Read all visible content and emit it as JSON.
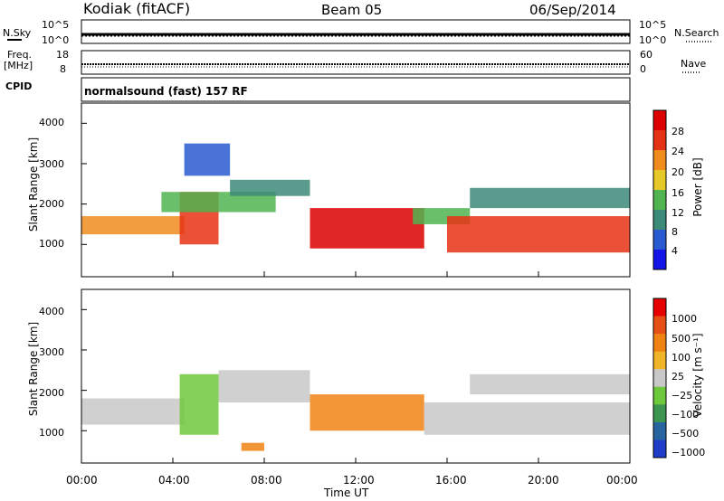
{
  "header": {
    "station": "Kodiak (fitACF)",
    "beam": "Beam 05",
    "date": "06/Sep/2014"
  },
  "strips": {
    "nsky_label": "N.Sky",
    "nsky_ticks": [
      "10^5",
      "10^0"
    ],
    "nsearch_label": "N.Search",
    "nsearch_ticks": [
      "10^5",
      "10^0"
    ],
    "freq_label": "Freq.",
    "freq_unit": "[MHz]",
    "freq_ticks": [
      "18",
      "8"
    ],
    "nave_label": "Nave",
    "nave_ticks": [
      "60",
      "0"
    ],
    "cpid_label": "CPID",
    "cpid_value": "normalsound (fast) 157 RF"
  },
  "chart_data": [
    {
      "type": "heatmap",
      "name": "power",
      "ylabel": "Slant Range [km]",
      "yticks": [
        "1000",
        "2000",
        "3000",
        "4000"
      ],
      "ylim": [
        200,
        4500
      ],
      "colorbar_label": "Power [dB]",
      "colorbar_ticks": [
        "4",
        "8",
        "12",
        "16",
        "20",
        "24",
        "28"
      ],
      "colorbar_colors": [
        "#1414e6",
        "#2a5ad0",
        "#3c8a78",
        "#50b450",
        "#e6c828",
        "#f08c1e",
        "#e63214",
        "#dc0000"
      ],
      "regions": [
        {
          "t0": 0.0,
          "t1": 4.5,
          "r0": 1250,
          "r1": 1700,
          "level": 5
        },
        {
          "t0": 4.3,
          "t1": 6.0,
          "r0": 1000,
          "r1": 2300,
          "level": 6
        },
        {
          "t0": 3.5,
          "t1": 8.5,
          "r0": 1800,
          "r1": 2300,
          "level": 3
        },
        {
          "t0": 6.5,
          "t1": 10.0,
          "r0": 2200,
          "r1": 2600,
          "level": 2
        },
        {
          "t0": 10.0,
          "t1": 15.0,
          "r0": 900,
          "r1": 1900,
          "level": 7
        },
        {
          "t0": 14.5,
          "t1": 17.0,
          "r0": 1500,
          "r1": 1900,
          "level": 3
        },
        {
          "t0": 16.0,
          "t1": 24.0,
          "r0": 800,
          "r1": 1700,
          "level": 6
        },
        {
          "t0": 17.0,
          "t1": 24.0,
          "r0": 1900,
          "r1": 2400,
          "level": 2
        },
        {
          "t0": 4.5,
          "t1": 6.5,
          "r0": 2700,
          "r1": 3500,
          "level": 1
        }
      ]
    },
    {
      "type": "heatmap",
      "name": "velocity",
      "ylabel": "Slant Range [km]",
      "yticks": [
        "1000",
        "2000",
        "3000",
        "4000"
      ],
      "ylim": [
        200,
        4500
      ],
      "colorbar_label": "Velocity [m s⁻¹]",
      "colorbar_ticks": [
        "1000",
        "500",
        "100",
        "25",
        "−25",
        "−100",
        "−500",
        "−1000"
      ],
      "colorbar_colors": [
        "#1e3cc8",
        "#2864a0",
        "#3c9650",
        "#6ec83c",
        "#c8c8c8",
        "#f0b428",
        "#f08214",
        "#e65014",
        "#e60000"
      ],
      "xticks": [
        "00:00",
        "04:00",
        "08:00",
        "12:00",
        "16:00",
        "20:00",
        "00:00"
      ],
      "xlim": [
        0,
        24
      ],
      "xlabel": "Time UT",
      "regions": [
        {
          "t0": 0.0,
          "t1": 4.5,
          "r0": 1150,
          "r1": 1800,
          "level": 4
        },
        {
          "t0": 4.3,
          "t1": 6.0,
          "r0": 900,
          "r1": 2400,
          "level": 3
        },
        {
          "t0": 6.0,
          "t1": 10.0,
          "r0": 1700,
          "r1": 2500,
          "level": 4
        },
        {
          "t0": 10.0,
          "t1": 15.0,
          "r0": 1000,
          "r1": 1900,
          "level": 6
        },
        {
          "t0": 15.0,
          "t1": 24.0,
          "r0": 900,
          "r1": 1700,
          "level": 4
        },
        {
          "t0": 17.0,
          "t1": 24.0,
          "r0": 1900,
          "r1": 2400,
          "level": 4
        },
        {
          "t0": 7.0,
          "t1": 8.0,
          "r0": 500,
          "r1": 700,
          "level": 6
        }
      ]
    }
  ]
}
